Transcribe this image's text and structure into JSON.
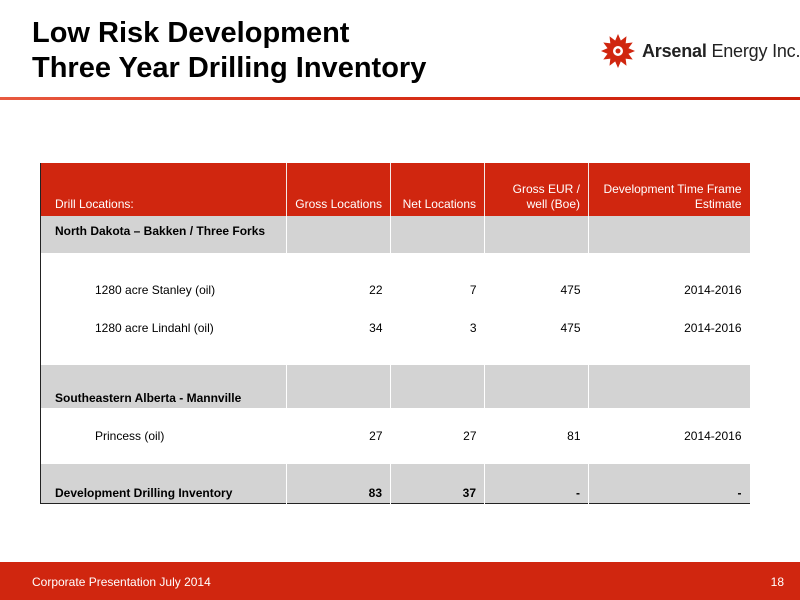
{
  "title": {
    "line1": "Low Risk Development",
    "line2": "Three Year Drilling Inventory"
  },
  "logo": {
    "name": "Arsenal Energy Inc.",
    "name_bold": "Arsenal",
    "name_rest": " Energy Inc.",
    "icon": "red-sunburst-logo-icon",
    "color": "#d0260f"
  },
  "table": {
    "headers": {
      "drill_locations": "Drill Locations:",
      "gross_locations": "Gross Locations",
      "net_locations": "Net Locations",
      "gross_eur": "Gross EUR / well (Boe)",
      "dev_time": "Development Time Frame Estimate"
    },
    "regions": [
      {
        "name": "North Dakota – Bakken / Three Forks",
        "rows": [
          {
            "location": "1280 acre Stanley (oil)",
            "gross": "22",
            "net": "7",
            "eur": "475",
            "timeframe": "2014-2016"
          },
          {
            "location": "1280 acre Lindahl (oil)",
            "gross": "34",
            "net": "3",
            "eur": "475",
            "timeframe": "2014-2016"
          }
        ]
      },
      {
        "name": "Southeastern Alberta - Mannville",
        "rows": [
          {
            "location": "Princess (oil)",
            "gross": "27",
            "net": "27",
            "eur": "81",
            "timeframe": "2014-2016"
          }
        ]
      }
    ],
    "total": {
      "label": "Development Drilling Inventory",
      "gross": "83",
      "net": "37",
      "eur": "-",
      "timeframe": "-"
    }
  },
  "footer": {
    "left": "Corporate Presentation July 2014",
    "page": "18"
  },
  "colors": {
    "accent_red": "#d0260f",
    "row_grey": "#d3d3d3"
  }
}
